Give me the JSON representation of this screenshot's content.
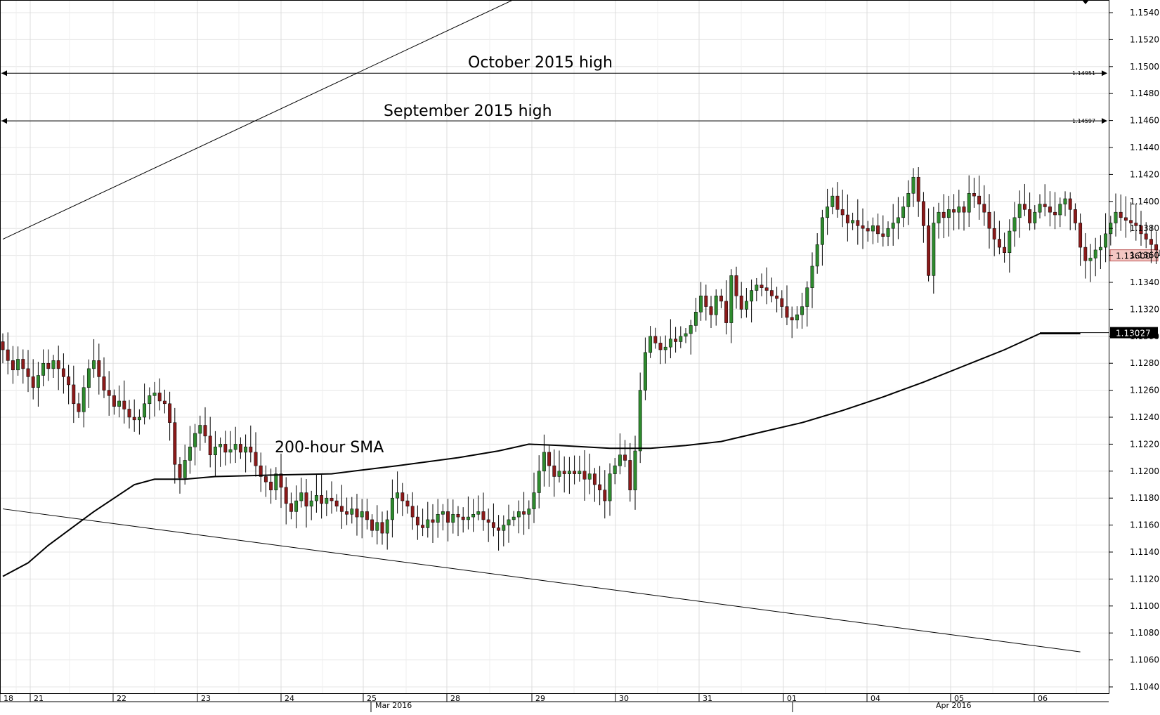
{
  "chart_data": {
    "type": "candlestick",
    "ylim": [
      1.103,
      1.155
    ],
    "y_ticks": [
      "1.1540",
      "1.1520",
      "1.1500",
      "1.1480",
      "1.1460",
      "1.1440",
      "1.1420",
      "1.1400",
      "1.1380",
      "1.1360",
      "1.1340",
      "1.1320",
      "1.1300",
      "1.1280",
      "1.1260",
      "1.1240",
      "1.1220",
      "1.1200",
      "1.1180",
      "1.1160",
      "1.1140",
      "1.1120",
      "1.1100",
      "1.1080",
      "1.1060",
      "1.1040"
    ],
    "day_labels": [
      "18",
      "21",
      "22",
      "23",
      "24",
      "25",
      "28",
      "29",
      "30",
      "31",
      "01",
      "04",
      "05",
      "06"
    ],
    "month_labels": [
      "Mar 2016",
      "Apr 2016"
    ],
    "annotations": {
      "october_high": "October 2015 high",
      "september_high": "September 2015 high",
      "sma": "200-hour SMA"
    },
    "levels": {
      "october_high": 1.14951,
      "september_high": 1.14597,
      "last_price": 1.136,
      "sma_last": 1.13027
    },
    "level_labels": {
      "october_high": "1.14951",
      "september_high": "1.14597",
      "last_price": "1.13600",
      "sma_last": "1.13027"
    },
    "trendlines": {
      "upper": [
        [
          0,
          1.1372
        ],
        [
          108,
          1.1562
        ]
      ],
      "lower": [
        [
          0,
          1.1172
        ],
        [
          213,
          1.1066
        ]
      ]
    },
    "sma_points": [
      [
        0,
        1.1122
      ],
      [
        5,
        1.1132
      ],
      [
        9,
        1.1145
      ],
      [
        18,
        1.117
      ],
      [
        26,
        1.119
      ],
      [
        30,
        1.1194
      ],
      [
        36,
        1.1194
      ],
      [
        42,
        1.1196
      ],
      [
        52,
        1.1197
      ],
      [
        65,
        1.1198
      ],
      [
        78,
        1.1204
      ],
      [
        90,
        1.121
      ],
      [
        98,
        1.1215
      ],
      [
        104,
        1.122
      ],
      [
        110,
        1.1219
      ],
      [
        120,
        1.1217
      ],
      [
        128,
        1.1217
      ],
      [
        135,
        1.1219
      ],
      [
        142,
        1.1222
      ],
      [
        150,
        1.1229
      ],
      [
        158,
        1.1236
      ],
      [
        166,
        1.1245
      ],
      [
        174,
        1.1255
      ],
      [
        182,
        1.1266
      ],
      [
        190,
        1.1278
      ],
      [
        198,
        1.129
      ],
      [
        205,
        1.1302
      ],
      [
        213,
        1.1302
      ]
    ],
    "bar_closes": [
      1.129,
      1.1282,
      1.1275,
      1.1283,
      1.1276,
      1.127,
      1.1262,
      1.1271,
      1.128,
      1.1276,
      1.1282,
      1.1276,
      1.127,
      1.1264,
      1.125,
      1.1244,
      1.1262,
      1.1276,
      1.1282,
      1.127,
      1.126,
      1.1256,
      1.1248,
      1.1252,
      1.1246,
      1.124,
      1.1238,
      1.124,
      1.125,
      1.1256,
      1.1258,
      1.1252,
      1.125,
      1.1236,
      1.1205,
      1.1195,
      1.1208,
      1.1218,
      1.1228,
      1.1234,
      1.1226,
      1.1212,
      1.1218,
      1.122,
      1.1214,
      1.1216,
      1.122,
      1.1214,
      1.1218,
      1.1214,
      1.1204,
      1.1196,
      1.1192,
      1.1186,
      1.1198,
      1.1188,
      1.1176,
      1.117,
      1.1178,
      1.1184,
      1.1174,
      1.1178,
      1.1182,
      1.1176,
      1.118,
      1.1178,
      1.1174,
      1.117,
      1.1168,
      1.1172,
      1.1166,
      1.117,
      1.1164,
      1.1156,
      1.1162,
      1.1154,
      1.1164,
      1.118,
      1.1184,
      1.1178,
      1.1174,
      1.1166,
      1.116,
      1.1158,
      1.1164,
      1.1162,
      1.1168,
      1.117,
      1.1162,
      1.1168,
      1.1166,
      1.1164,
      1.1166,
      1.1168,
      1.117,
      1.1164,
      1.1162,
      1.1158,
      1.1156,
      1.116,
      1.1164,
      1.1166,
      1.117,
      1.1168,
      1.1172,
      1.1184,
      1.12,
      1.1214,
      1.1204,
      1.1196,
      1.12,
      1.1198,
      1.12,
      1.1198,
      1.12,
      1.1194,
      1.1198,
      1.119,
      1.1186,
      1.1178,
      1.1198,
      1.1204,
      1.1212,
      1.1208,
      1.1186,
      1.1215,
      1.126,
      1.1288,
      1.13,
      1.1295,
      1.129,
      1.1292,
      1.1298,
      1.1296,
      1.13,
      1.1302,
      1.1308,
      1.1318,
      1.133,
      1.1322,
      1.1316,
      1.133,
      1.1326,
      1.131,
      1.1345,
      1.133,
      1.132,
      1.1326,
      1.1334,
      1.1338,
      1.1336,
      1.1334,
      1.133,
      1.1328,
      1.1322,
      1.1314,
      1.1312,
      1.1316,
      1.1322,
      1.1336,
      1.1352,
      1.1368,
      1.1388,
      1.1396,
      1.1404,
      1.1394,
      1.139,
      1.1384,
      1.1386,
      1.1382,
      1.138,
      1.1378,
      1.1382,
      1.1376,
      1.1374,
      1.138,
      1.1384,
      1.1388,
      1.1396,
      1.1406,
      1.1418,
      1.14,
      1.1382,
      1.1345,
      1.1384,
      1.1392,
      1.1388,
      1.1394,
      1.1392,
      1.1396,
      1.1392,
      1.1406,
      1.1404,
      1.1398,
      1.1392,
      1.138,
      1.1372,
      1.1366,
      1.1362,
      1.1378,
      1.1388,
      1.1398,
      1.1394,
      1.1384,
      1.1392,
      1.1398,
      1.1396,
      1.1392,
      1.139,
      1.1398,
      1.1402,
      1.1394,
      1.1384,
      1.1366,
      1.1356,
      1.1358,
      1.1364,
      1.1366,
      1.1376,
      1.1384,
      1.1392,
      1.1388,
      1.1386,
      1.1384,
      1.1382,
      1.1376,
      1.1372,
      1.1368,
      1.1364,
      1.136
    ]
  }
}
